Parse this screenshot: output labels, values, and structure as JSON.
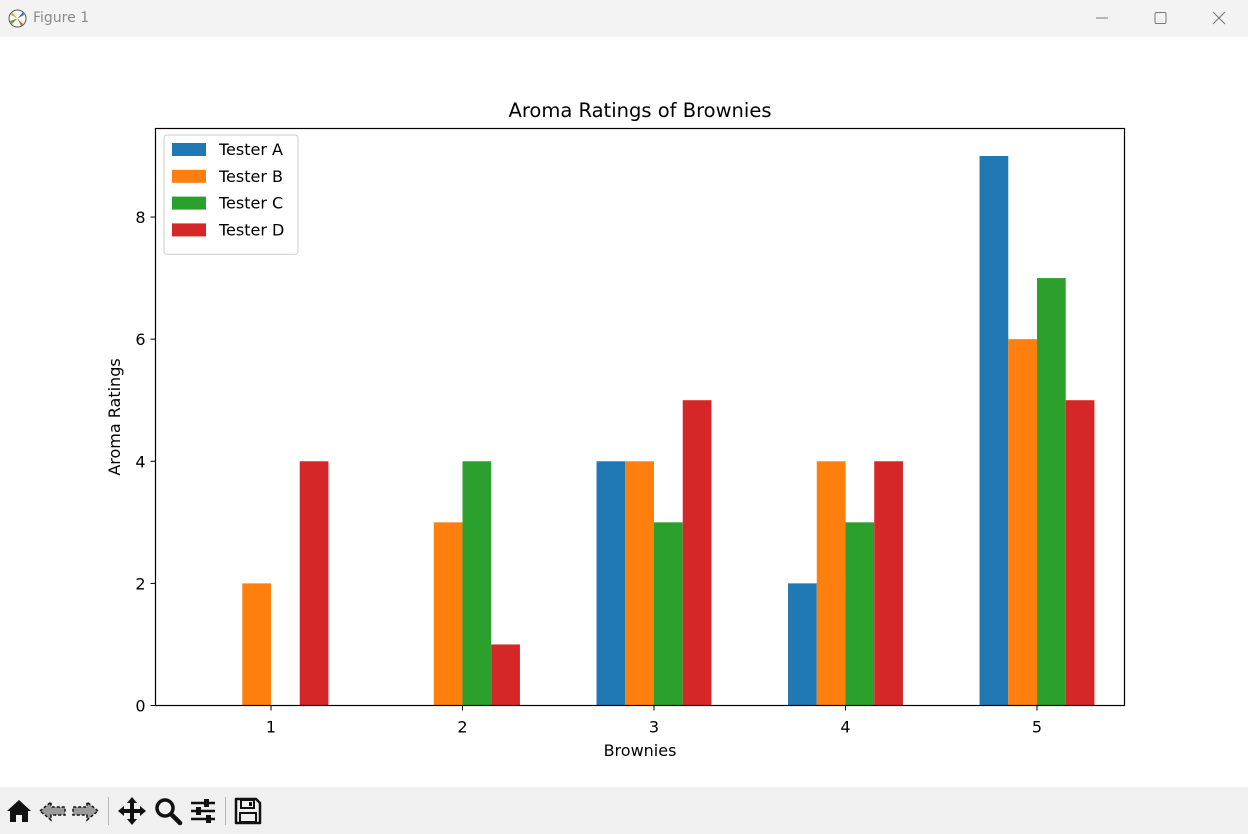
{
  "window": {
    "title": "Figure 1",
    "controls": [
      "minimize-icon",
      "maximize-icon",
      "close-icon"
    ]
  },
  "toolbar": {
    "buttons": [
      "home-icon",
      "back-icon",
      "forward-icon",
      "pan-icon",
      "zoom-icon",
      "configure-subplots-icon",
      "save-icon"
    ]
  },
  "chart_data": {
    "type": "bar",
    "title": "Aroma Ratings of Brownies",
    "xlabel": "Brownies",
    "ylabel": "Aroma Ratings",
    "categories": [
      "1",
      "2",
      "3",
      "4",
      "5"
    ],
    "yticks": [
      "0",
      "2",
      "4",
      "6",
      "8"
    ],
    "ylim": [
      0,
      9.45
    ],
    "grid": false,
    "legend_position": "upper left",
    "series": [
      {
        "name": "Tester A",
        "color": "#1f77b4",
        "values": [
          0,
          0,
          4,
          2,
          9
        ]
      },
      {
        "name": "Tester B",
        "color": "#ff7f0e",
        "values": [
          2,
          3,
          4,
          4,
          6
        ]
      },
      {
        "name": "Tester C",
        "color": "#2ca02c",
        "values": [
          0,
          4,
          3,
          3,
          7
        ]
      },
      {
        "name": "Tester D",
        "color": "#d62728",
        "values": [
          4,
          1,
          5,
          4,
          5
        ]
      }
    ]
  }
}
